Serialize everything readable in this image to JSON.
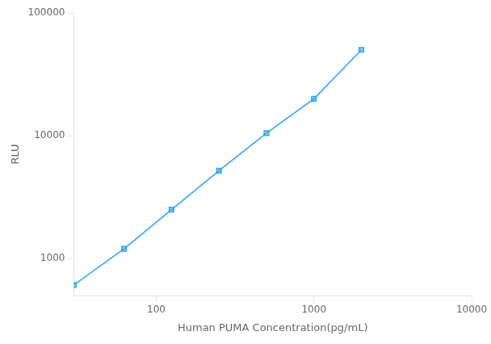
{
  "chart_data": {
    "type": "line",
    "x": [
      30,
      62.5,
      125,
      250,
      500,
      1000,
      2000
    ],
    "values": [
      610,
      1200,
      2500,
      5200,
      10500,
      20000,
      50000
    ],
    "xlabel": "Human PUMA Concentration(pg/mL)",
    "ylabel": "RLU",
    "xlim": [
      30,
      10000
    ],
    "ylim": [
      500,
      100000
    ],
    "xticks": [
      100,
      1000,
      10000
    ],
    "yticks": [
      1000,
      10000,
      100000
    ],
    "log": true,
    "grid": false,
    "marker": "square",
    "line_style": "solid"
  }
}
